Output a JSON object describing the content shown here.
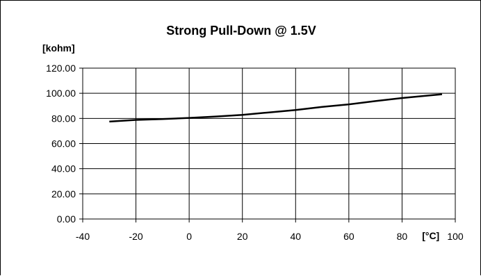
{
  "chart_data": {
    "type": "line",
    "title": "Strong Pull-Down  @ 1.5V",
    "ylabel": "[kohm]",
    "xlabel": "[°C]",
    "xlim": [
      -40,
      100
    ],
    "ylim": [
      0,
      120
    ],
    "xticks": [
      -40,
      -20,
      0,
      20,
      40,
      60,
      80,
      100
    ],
    "xtick_labels": [
      "-40",
      "-20",
      "0",
      "20",
      "40",
      "60",
      "80",
      "100"
    ],
    "yticks": [
      0,
      20,
      40,
      60,
      80,
      100,
      120
    ],
    "ytick_labels": [
      "0.00",
      "20.00",
      "40.00",
      "60.00",
      "80.00",
      "100.00",
      "120.00"
    ],
    "grid": true,
    "series": [
      {
        "color": "#000000",
        "x": [
          -30,
          -20,
          -10,
          0,
          10,
          20,
          30,
          40,
          50,
          60,
          70,
          80,
          90,
          95
        ],
        "y": [
          77.5,
          78.8,
          79.5,
          80.4,
          81.5,
          82.8,
          84.8,
          86.7,
          89.2,
          91.2,
          93.8,
          96.2,
          98.2,
          99.2
        ]
      }
    ]
  }
}
